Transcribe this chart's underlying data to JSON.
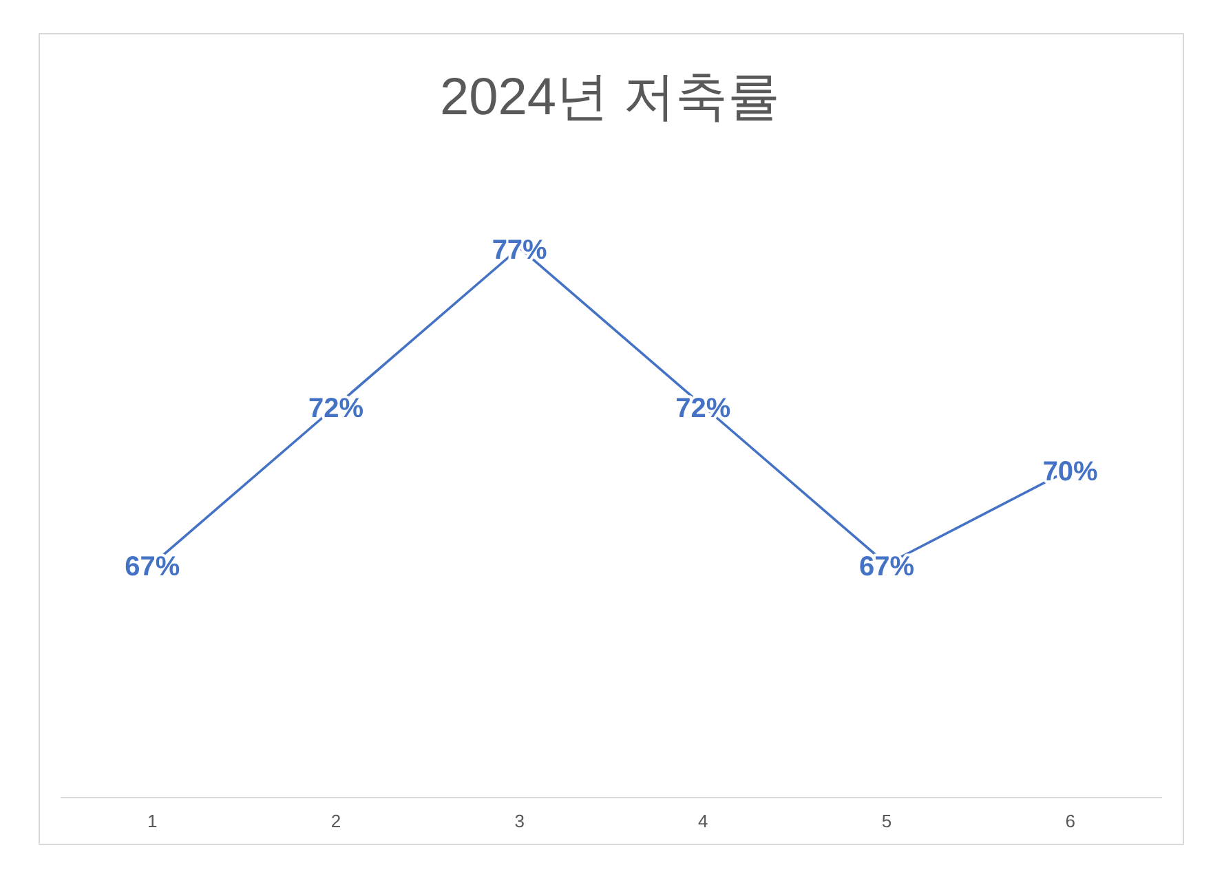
{
  "chart_data": {
    "type": "line",
    "title": "2024년 저축률",
    "categories": [
      "1",
      "2",
      "3",
      "4",
      "5",
      "6"
    ],
    "values": [
      67,
      72,
      77,
      72,
      67,
      70
    ],
    "value_labels": [
      "67%",
      "72%",
      "77%",
      "72%",
      "67%",
      "70%"
    ],
    "color": "#4472c4",
    "tick_labels": "x"
  }
}
